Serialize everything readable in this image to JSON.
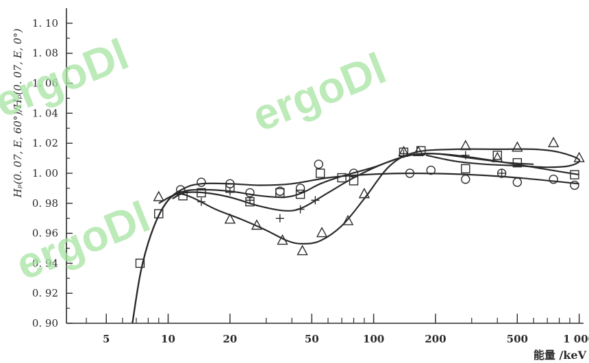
{
  "chart_data": {
    "type": "scatter",
    "x_scale": "log",
    "xlim": [
      3.2,
      1050
    ],
    "ylim": [
      0.9,
      1.11
    ],
    "y_ticks": [
      0.9,
      0.92,
      0.94,
      0.96,
      0.98,
      1.0,
      1.02,
      1.04,
      1.06,
      1.08,
      1.1
    ],
    "y_tick_labels": [
      "0. 90",
      "0. 92",
      "0. 94",
      "0. 96",
      "0. 98",
      "1. 00",
      "1. 02",
      "1. 04",
      "1. 06",
      "1. 08",
      "1. 10"
    ],
    "x_ticks": [
      5,
      10,
      20,
      50,
      100,
      200,
      500,
      1000
    ],
    "x_tick_labels": [
      "5",
      "10",
      "20",
      "50",
      "100",
      "200",
      "500",
      "1 000"
    ],
    "xlabel": "能量 /keV",
    "ylabel": "Hₚ(0. 07, E, 60°)/Hₚ(0. 07, E, 0°)",
    "grid": false,
    "colors": {
      "ink": "#2a2a2a",
      "watermark": "#a6e3a1"
    },
    "series": [
      {
        "marker": "circle",
        "points": [
          [
            11.5,
            0.989
          ],
          [
            14.5,
            0.994
          ],
          [
            20,
            0.993
          ],
          [
            25,
            0.987
          ],
          [
            35,
            0.988
          ],
          [
            44,
            0.99
          ],
          [
            54,
            1.006
          ],
          [
            80,
            1.0
          ],
          [
            150,
            1.0
          ],
          [
            190,
            1.002
          ],
          [
            280,
            0.996
          ],
          [
            420,
            1.0
          ],
          [
            500,
            0.994
          ],
          [
            750,
            0.996
          ],
          [
            950,
            0.992
          ]
        ],
        "curve": [
          [
            6.7,
            0.9
          ],
          [
            7.4,
            0.936
          ],
          [
            8.5,
            0.964
          ],
          [
            10,
            0.982
          ],
          [
            12,
            0.99
          ],
          [
            14.5,
            0.993
          ],
          [
            20,
            0.993
          ],
          [
            28,
            0.992
          ],
          [
            40,
            0.993
          ],
          [
            60,
            0.997
          ],
          [
            90,
            0.999
          ],
          [
            150,
            1.0
          ],
          [
            300,
            0.999
          ],
          [
            500,
            0.997
          ],
          [
            1000,
            0.993
          ]
        ]
      },
      {
        "marker": "square",
        "points": [
          [
            7.3,
            0.94
          ],
          [
            9,
            0.973
          ],
          [
            11.8,
            0.985
          ],
          [
            14.5,
            0.987
          ],
          [
            20,
            0.99
          ],
          [
            25,
            0.981
          ],
          [
            35,
            0.987
          ],
          [
            44,
            0.986
          ],
          [
            55,
            1.0
          ],
          [
            70,
            0.997
          ],
          [
            80,
            0.995
          ],
          [
            140,
            1.014
          ],
          [
            170,
            1.015
          ],
          [
            280,
            1.003
          ],
          [
            400,
            1.012
          ],
          [
            500,
            1.007
          ],
          [
            950,
            0.999
          ]
        ],
        "curve": [
          [
            6.7,
            0.9
          ],
          [
            7.4,
            0.936
          ],
          [
            8.5,
            0.964
          ],
          [
            10,
            0.982
          ],
          [
            12,
            0.988
          ],
          [
            15,
            0.989
          ],
          [
            20,
            0.988
          ],
          [
            28,
            0.985
          ],
          [
            37,
            0.984
          ],
          [
            45,
            0.987
          ],
          [
            55,
            0.993
          ],
          [
            70,
            0.998
          ],
          [
            100,
            1.004
          ],
          [
            140,
            1.011
          ],
          [
            180,
            1.013
          ],
          [
            250,
            1.012
          ],
          [
            400,
            1.008
          ],
          [
            600,
            1.004
          ],
          [
            1000,
            0.999
          ]
        ]
      },
      {
        "marker": "plus",
        "points": [
          [
            14.5,
            0.981
          ],
          [
            20,
            0.988
          ],
          [
            25,
            0.982
          ],
          [
            35,
            0.97
          ],
          [
            44,
            0.976
          ],
          [
            52,
            0.982
          ],
          [
            140,
            1.013
          ],
          [
            280,
            1.012
          ],
          [
            420,
            1.0
          ]
        ],
        "curve": [
          [
            10.5,
            0.983
          ],
          [
            12,
            0.987
          ],
          [
            15,
            0.987
          ],
          [
            20,
            0.984
          ],
          [
            28,
            0.978
          ],
          [
            37,
            0.975
          ],
          [
            45,
            0.977
          ],
          [
            60,
            0.987
          ],
          [
            80,
            0.997
          ],
          [
            110,
            1.006
          ],
          [
            150,
            1.012
          ],
          [
            200,
            1.013
          ],
          [
            300,
            1.01
          ],
          [
            450,
            1.007
          ],
          [
            600,
            1.006
          ]
        ]
      },
      {
        "marker": "triangle",
        "points": [
          [
            9,
            0.984
          ],
          [
            20,
            0.969
          ],
          [
            27,
            0.965
          ],
          [
            36,
            0.955
          ],
          [
            45,
            0.948
          ],
          [
            56,
            0.96
          ],
          [
            75,
            0.968
          ],
          [
            90,
            0.986
          ],
          [
            140,
            1.014
          ],
          [
            165,
            1.014
          ],
          [
            280,
            1.018
          ],
          [
            400,
            1.01
          ],
          [
            500,
            1.017
          ],
          [
            750,
            1.02
          ],
          [
            1000,
            1.01
          ]
        ],
        "curve": [
          [
            9,
            0.98
          ],
          [
            11,
            0.986
          ],
          [
            13,
            0.984
          ],
          [
            17,
            0.976
          ],
          [
            23,
            0.969
          ],
          [
            30,
            0.962
          ],
          [
            38,
            0.955
          ],
          [
            45,
            0.953
          ],
          [
            55,
            0.955
          ],
          [
            70,
            0.965
          ],
          [
            90,
            0.983
          ],
          [
            120,
            1.005
          ],
          [
            160,
            1.014
          ],
          [
            250,
            1.016
          ],
          [
            400,
            1.016
          ],
          [
            600,
            1.016
          ],
          [
            800,
            1.014
          ],
          [
            1000,
            1.009
          ],
          [
            900,
            1.005
          ],
          [
            700,
            1.004
          ],
          [
            500,
            1.005
          ],
          [
            350,
            1.006
          ],
          [
            250,
            1.008
          ],
          [
            180,
            1.012
          ]
        ]
      }
    ]
  },
  "watermark": "ergoDl"
}
